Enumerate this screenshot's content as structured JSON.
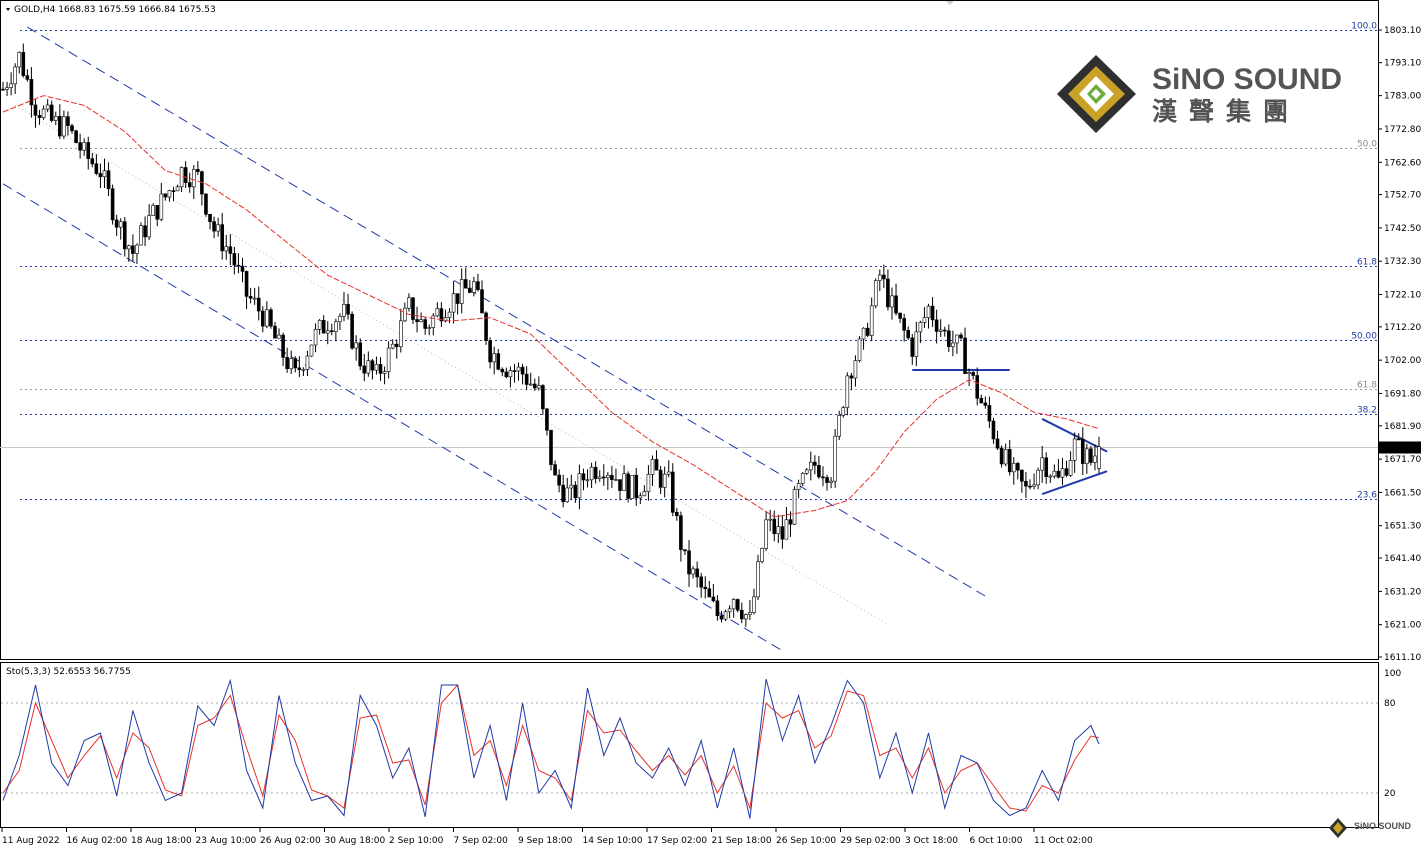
{
  "header": {
    "symbol_text": "GOLD,H4  1668.83 1675.59 1666.84 1675.53",
    "oscillator_text": "Sto(5,3,3) 52.6553 56.7755"
  },
  "logo": {
    "brand": "SiNO SOUND",
    "brand_cn": "漢聲集團",
    "mini": "SiNO SOUND"
  },
  "colors": {
    "bull": "#ffffff",
    "bear": "#000000",
    "ma": "#e8322c",
    "channel": "#1f3aa8",
    "fib_label": "#1f3aa8",
    "fib_grey": "#888888",
    "sto_main": "#1f3aa8",
    "sto_signal": "#e8322c",
    "logo_text": "#545454",
    "logo_gold": "#c9a227"
  },
  "chart_data": {
    "type": "candlestick",
    "symbol": "GOLD",
    "timeframe": "H4",
    "ohlc_current": {
      "open": 1668.83,
      "high": 1675.59,
      "low": 1666.84,
      "close": 1675.53
    },
    "last_price_label": "1675.53",
    "y_range": [
      1611.1,
      1803.1
    ],
    "y_ticks": [
      "1803.10",
      "1793.10",
      "1783.00",
      "1772.80",
      "1762.60",
      "1752.70",
      "1742.50",
      "1732.30",
      "1722.10",
      "1712.20",
      "1702.00",
      "1691.80",
      "1681.90",
      "1671.70",
      "1661.50",
      "1651.30",
      "1641.40",
      "1631.20",
      "1621.00",
      "1611.10"
    ],
    "y_tick_values": [
      1803.1,
      1793.1,
      1783.0,
      1772.8,
      1762.6,
      1752.7,
      1742.5,
      1732.3,
      1722.1,
      1712.2,
      1702.0,
      1691.8,
      1681.9,
      1671.7,
      1661.5,
      1651.3,
      1641.4,
      1631.2,
      1621.0,
      1611.1
    ],
    "x_tick_labels": [
      "11 Aug 2022",
      "16 Aug 02:00",
      "18 Aug 18:00",
      "23 Aug 10:00",
      "26 Aug 02:00",
      "30 Aug 18:00",
      "2 Sep 10:00",
      "7 Sep 02:00",
      "9 Sep 18:00",
      "14 Sep 10:00",
      "17 Sep 02:00",
      "21 Sep 18:00",
      "26 Sep 10:00",
      "29 Sep 02:00",
      "3 Oct 18:00",
      "6 Oct 10:00",
      "11 Oct 02:00"
    ],
    "fib_levels": [
      {
        "label": "100.0",
        "price": 1803.1,
        "style": "blue"
      },
      {
        "label": "50.0",
        "price": 1767.0,
        "style": "grey"
      },
      {
        "label": "61.8",
        "price": 1730.8,
        "style": "blue"
      },
      {
        "label": "50.00",
        "price": 1708.3,
        "style": "blue"
      },
      {
        "label": "61.8",
        "price": 1693.3,
        "style": "grey"
      },
      {
        "label": "38.2",
        "price": 1685.4,
        "style": "blue"
      },
      {
        "label": "23.6",
        "price": 1659.4,
        "style": "blue"
      }
    ],
    "close_path": [
      {
        "t": 0,
        "p": 1785
      },
      {
        "t": 4,
        "p": 1795
      },
      {
        "t": 8,
        "p": 1780
      },
      {
        "t": 12,
        "p": 1775
      },
      {
        "t": 16,
        "p": 1773
      },
      {
        "t": 20,
        "p": 1765
      },
      {
        "t": 24,
        "p": 1760
      },
      {
        "t": 28,
        "p": 1745
      },
      {
        "t": 32,
        "p": 1735
      },
      {
        "t": 36,
        "p": 1745
      },
      {
        "t": 40,
        "p": 1752
      },
      {
        "t": 44,
        "p": 1760
      },
      {
        "t": 48,
        "p": 1758
      },
      {
        "t": 52,
        "p": 1742
      },
      {
        "t": 56,
        "p": 1735
      },
      {
        "t": 60,
        "p": 1722
      },
      {
        "t": 64,
        "p": 1716
      },
      {
        "t": 68,
        "p": 1706
      },
      {
        "t": 72,
        "p": 1697
      },
      {
        "t": 76,
        "p": 1708
      },
      {
        "t": 80,
        "p": 1714
      },
      {
        "t": 84,
        "p": 1716
      },
      {
        "t": 88,
        "p": 1702
      },
      {
        "t": 92,
        "p": 1697
      },
      {
        "t": 96,
        "p": 1706
      },
      {
        "t": 100,
        "p": 1718
      },
      {
        "t": 104,
        "p": 1712
      },
      {
        "t": 108,
        "p": 1718
      },
      {
        "t": 112,
        "p": 1722
      },
      {
        "t": 116,
        "p": 1725
      },
      {
        "t": 120,
        "p": 1705
      },
      {
        "t": 124,
        "p": 1700
      },
      {
        "t": 128,
        "p": 1698
      },
      {
        "t": 132,
        "p": 1692
      },
      {
        "t": 136,
        "p": 1665
      },
      {
        "t": 140,
        "p": 1660
      },
      {
        "t": 144,
        "p": 1668
      },
      {
        "t": 148,
        "p": 1670
      },
      {
        "t": 152,
        "p": 1665
      },
      {
        "t": 156,
        "p": 1662
      },
      {
        "t": 160,
        "p": 1668
      },
      {
        "t": 164,
        "p": 1664
      },
      {
        "t": 168,
        "p": 1640
      },
      {
        "t": 172,
        "p": 1632
      },
      {
        "t": 176,
        "p": 1624
      },
      {
        "t": 180,
        "p": 1630
      },
      {
        "t": 184,
        "p": 1622
      },
      {
        "t": 188,
        "p": 1652
      },
      {
        "t": 192,
        "p": 1648
      },
      {
        "t": 196,
        "p": 1662
      },
      {
        "t": 200,
        "p": 1670
      },
      {
        "t": 204,
        "p": 1668
      },
      {
        "t": 208,
        "p": 1698
      },
      {
        "t": 212,
        "p": 1708
      },
      {
        "t": 216,
        "p": 1728
      },
      {
        "t": 220,
        "p": 1715
      },
      {
        "t": 224,
        "p": 1706
      },
      {
        "t": 228,
        "p": 1718
      },
      {
        "t": 232,
        "p": 1710
      },
      {
        "t": 236,
        "p": 1705
      },
      {
        "t": 240,
        "p": 1692
      },
      {
        "t": 244,
        "p": 1680
      },
      {
        "t": 248,
        "p": 1668
      },
      {
        "t": 252,
        "p": 1662
      },
      {
        "t": 256,
        "p": 1672
      },
      {
        "t": 260,
        "p": 1665
      },
      {
        "t": 264,
        "p": 1676
      },
      {
        "t": 268,
        "p": 1671
      },
      {
        "t": 270,
        "p": 1675.5
      }
    ],
    "moving_average": [
      {
        "t": 0,
        "p": 1778
      },
      {
        "t": 10,
        "p": 1783
      },
      {
        "t": 20,
        "p": 1780
      },
      {
        "t": 30,
        "p": 1772
      },
      {
        "t": 40,
        "p": 1760
      },
      {
        "t": 50,
        "p": 1756
      },
      {
        "t": 60,
        "p": 1748
      },
      {
        "t": 70,
        "p": 1738
      },
      {
        "t": 80,
        "p": 1728
      },
      {
        "t": 90,
        "p": 1722
      },
      {
        "t": 100,
        "p": 1716
      },
      {
        "t": 110,
        "p": 1714
      },
      {
        "t": 120,
        "p": 1715
      },
      {
        "t": 130,
        "p": 1710
      },
      {
        "t": 140,
        "p": 1698
      },
      {
        "t": 150,
        "p": 1686
      },
      {
        "t": 160,
        "p": 1677
      },
      {
        "t": 170,
        "p": 1670
      },
      {
        "t": 180,
        "p": 1662
      },
      {
        "t": 190,
        "p": 1654
      },
      {
        "t": 200,
        "p": 1656
      },
      {
        "t": 208,
        "p": 1659
      },
      {
        "t": 215,
        "p": 1668
      },
      {
        "t": 222,
        "p": 1680
      },
      {
        "t": 230,
        "p": 1690
      },
      {
        "t": 238,
        "p": 1696
      },
      {
        "t": 246,
        "p": 1692
      },
      {
        "t": 254,
        "p": 1686
      },
      {
        "t": 262,
        "p": 1684
      },
      {
        "t": 270,
        "p": 1681
      }
    ],
    "trendlines": [
      {
        "name": "channel_upper",
        "t1": 6,
        "p1": 1804,
        "t2": 243,
        "p2": 1629
      },
      {
        "name": "channel_lower",
        "t1": 0,
        "p1": 1756,
        "t2": 192,
        "p2": 1613
      },
      {
        "name": "neckline",
        "t1": 224,
        "p1": 1699,
        "t2": 248,
        "p2": 1699
      },
      {
        "name": "triangle_upper",
        "t1": 256,
        "p1": 1684,
        "t2": 272,
        "p2": 1674
      },
      {
        "name": "triangle_lower",
        "t1": 256,
        "p1": 1661,
        "t2": 272,
        "p2": 1668
      }
    ],
    "stochastic": {
      "params": "5,3,3",
      "main": 52.6553,
      "signal": 56.7755,
      "y_range": [
        0,
        100
      ],
      "levels": [
        80,
        20
      ],
      "tick_labels": [
        "100",
        "80",
        "20"
      ],
      "main_path": [
        {
          "t": 0,
          "v": 15
        },
        {
          "t": 4,
          "v": 45
        },
        {
          "t": 8,
          "v": 92
        },
        {
          "t": 12,
          "v": 40
        },
        {
          "t": 16,
          "v": 25
        },
        {
          "t": 20,
          "v": 55
        },
        {
          "t": 24,
          "v": 60
        },
        {
          "t": 28,
          "v": 18
        },
        {
          "t": 32,
          "v": 75
        },
        {
          "t": 36,
          "v": 40
        },
        {
          "t": 40,
          "v": 15
        },
        {
          "t": 44,
          "v": 20
        },
        {
          "t": 48,
          "v": 78
        },
        {
          "t": 52,
          "v": 65
        },
        {
          "t": 56,
          "v": 95
        },
        {
          "t": 60,
          "v": 35
        },
        {
          "t": 64,
          "v": 10
        },
        {
          "t": 68,
          "v": 85
        },
        {
          "t": 72,
          "v": 40
        },
        {
          "t": 76,
          "v": 15
        },
        {
          "t": 80,
          "v": 18
        },
        {
          "t": 84,
          "v": 5
        },
        {
          "t": 88,
          "v": 85
        },
        {
          "t": 92,
          "v": 65
        },
        {
          "t": 96,
          "v": 30
        },
        {
          "t": 100,
          "v": 50
        },
        {
          "t": 104,
          "v": 4
        },
        {
          "t": 108,
          "v": 92
        },
        {
          "t": 112,
          "v": 92
        },
        {
          "t": 116,
          "v": 30
        },
        {
          "t": 120,
          "v": 65
        },
        {
          "t": 124,
          "v": 15
        },
        {
          "t": 128,
          "v": 80
        },
        {
          "t": 132,
          "v": 20
        },
        {
          "t": 136,
          "v": 35
        },
        {
          "t": 140,
          "v": 10
        },
        {
          "t": 144,
          "v": 90
        },
        {
          "t": 148,
          "v": 45
        },
        {
          "t": 152,
          "v": 70
        },
        {
          "t": 156,
          "v": 40
        },
        {
          "t": 160,
          "v": 30
        },
        {
          "t": 164,
          "v": 50
        },
        {
          "t": 168,
          "v": 25
        },
        {
          "t": 172,
          "v": 55
        },
        {
          "t": 176,
          "v": 10
        },
        {
          "t": 180,
          "v": 50
        },
        {
          "t": 184,
          "v": 3
        },
        {
          "t": 188,
          "v": 96
        },
        {
          "t": 192,
          "v": 55
        },
        {
          "t": 196,
          "v": 85
        },
        {
          "t": 200,
          "v": 40
        },
        {
          "t": 204,
          "v": 65
        },
        {
          "t": 208,
          "v": 95
        },
        {
          "t": 212,
          "v": 80
        },
        {
          "t": 216,
          "v": 30
        },
        {
          "t": 220,
          "v": 60
        },
        {
          "t": 224,
          "v": 20
        },
        {
          "t": 228,
          "v": 60
        },
        {
          "t": 232,
          "v": 10
        },
        {
          "t": 236,
          "v": 45
        },
        {
          "t": 240,
          "v": 40
        },
        {
          "t": 244,
          "v": 15
        },
        {
          "t": 248,
          "v": 5
        },
        {
          "t": 252,
          "v": 10
        },
        {
          "t": 256,
          "v": 35
        },
        {
          "t": 260,
          "v": 15
        },
        {
          "t": 264,
          "v": 55
        },
        {
          "t": 268,
          "v": 65
        },
        {
          "t": 270,
          "v": 52.7
        }
      ],
      "signal_path": [
        {
          "t": 0,
          "v": 20
        },
        {
          "t": 4,
          "v": 35
        },
        {
          "t": 8,
          "v": 80
        },
        {
          "t": 12,
          "v": 55
        },
        {
          "t": 16,
          "v": 30
        },
        {
          "t": 20,
          "v": 45
        },
        {
          "t": 24,
          "v": 58
        },
        {
          "t": 28,
          "v": 30
        },
        {
          "t": 32,
          "v": 60
        },
        {
          "t": 36,
          "v": 50
        },
        {
          "t": 40,
          "v": 22
        },
        {
          "t": 44,
          "v": 18
        },
        {
          "t": 48,
          "v": 65
        },
        {
          "t": 52,
          "v": 70
        },
        {
          "t": 56,
          "v": 85
        },
        {
          "t": 60,
          "v": 50
        },
        {
          "t": 64,
          "v": 18
        },
        {
          "t": 68,
          "v": 72
        },
        {
          "t": 72,
          "v": 55
        },
        {
          "t": 76,
          "v": 22
        },
        {
          "t": 80,
          "v": 18
        },
        {
          "t": 84,
          "v": 10
        },
        {
          "t": 88,
          "v": 70
        },
        {
          "t": 92,
          "v": 72
        },
        {
          "t": 96,
          "v": 40
        },
        {
          "t": 100,
          "v": 42
        },
        {
          "t": 104,
          "v": 12
        },
        {
          "t": 108,
          "v": 80
        },
        {
          "t": 112,
          "v": 92
        },
        {
          "t": 116,
          "v": 45
        },
        {
          "t": 120,
          "v": 55
        },
        {
          "t": 124,
          "v": 25
        },
        {
          "t": 128,
          "v": 65
        },
        {
          "t": 132,
          "v": 35
        },
        {
          "t": 136,
          "v": 30
        },
        {
          "t": 140,
          "v": 15
        },
        {
          "t": 144,
          "v": 75
        },
        {
          "t": 148,
          "v": 60
        },
        {
          "t": 152,
          "v": 62
        },
        {
          "t": 156,
          "v": 48
        },
        {
          "t": 160,
          "v": 35
        },
        {
          "t": 164,
          "v": 45
        },
        {
          "t": 168,
          "v": 32
        },
        {
          "t": 172,
          "v": 45
        },
        {
          "t": 176,
          "v": 20
        },
        {
          "t": 180,
          "v": 38
        },
        {
          "t": 184,
          "v": 10
        },
        {
          "t": 188,
          "v": 80
        },
        {
          "t": 192,
          "v": 70
        },
        {
          "t": 196,
          "v": 75
        },
        {
          "t": 200,
          "v": 50
        },
        {
          "t": 204,
          "v": 58
        },
        {
          "t": 208,
          "v": 88
        },
        {
          "t": 212,
          "v": 85
        },
        {
          "t": 216,
          "v": 45
        },
        {
          "t": 220,
          "v": 50
        },
        {
          "t": 224,
          "v": 30
        },
        {
          "t": 228,
          "v": 50
        },
        {
          "t": 232,
          "v": 20
        },
        {
          "t": 236,
          "v": 35
        },
        {
          "t": 240,
          "v": 40
        },
        {
          "t": 244,
          "v": 25
        },
        {
          "t": 248,
          "v": 10
        },
        {
          "t": 252,
          "v": 8
        },
        {
          "t": 256,
          "v": 25
        },
        {
          "t": 260,
          "v": 20
        },
        {
          "t": 264,
          "v": 42
        },
        {
          "t": 268,
          "v": 58
        },
        {
          "t": 270,
          "v": 56.8
        }
      ]
    }
  }
}
